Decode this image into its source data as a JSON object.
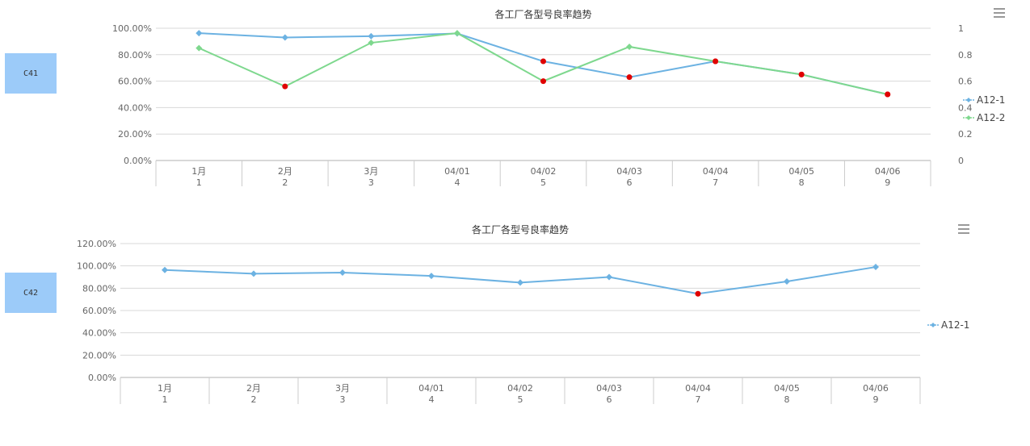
{
  "panels": [
    {
      "label": "C41"
    },
    {
      "label": "C42"
    }
  ],
  "chart_data": [
    {
      "type": "line",
      "title": "各工厂各型号良率趋势",
      "categories": [
        [
          "1月",
          "1"
        ],
        [
          "2月",
          "2"
        ],
        [
          "3月",
          "3"
        ],
        [
          "04/01",
          "4"
        ],
        [
          "04/02",
          "5"
        ],
        [
          "04/03",
          "6"
        ],
        [
          "04/04",
          "7"
        ],
        [
          "04/05",
          "8"
        ],
        [
          "04/06",
          "9"
        ]
      ],
      "left_axis": {
        "ticks": [
          "0.00%",
          "20.00%",
          "40.00%",
          "60.00%",
          "80.00%",
          "100.00%"
        ],
        "ylim": [
          0,
          1
        ]
      },
      "right_axis": {
        "ticks": [
          "0",
          "0.2",
          "0.4",
          "0.6",
          "0.8",
          "1"
        ],
        "ylim": [
          0,
          1
        ]
      },
      "grid": true,
      "legend": "right",
      "series": [
        {
          "name": "A12-1",
          "color": "#6cb2e2",
          "values": [
            0.963,
            0.93,
            0.94,
            0.96,
            0.75,
            0.63,
            0.75,
            0.65,
            0.5
          ],
          "highlight": [
            false,
            false,
            false,
            false,
            true,
            true,
            true,
            true,
            true
          ]
        },
        {
          "name": "A12-2",
          "color": "#7ed88e",
          "values": [
            0.85,
            0.56,
            0.89,
            0.963,
            0.6,
            0.86,
            0.75,
            0.65,
            0.5
          ],
          "highlight": [
            false,
            true,
            false,
            false,
            true,
            false,
            true,
            true,
            true
          ]
        }
      ],
      "highlight_color": "#e00000"
    },
    {
      "type": "line",
      "title": "各工厂各型号良率趋势",
      "categories": [
        [
          "1月",
          "1"
        ],
        [
          "2月",
          "2"
        ],
        [
          "3月",
          "3"
        ],
        [
          "04/01",
          "4"
        ],
        [
          "04/02",
          "5"
        ],
        [
          "04/03",
          "6"
        ],
        [
          "04/04",
          "7"
        ],
        [
          "04/05",
          "8"
        ],
        [
          "04/06",
          "9"
        ]
      ],
      "left_axis": {
        "ticks": [
          "0.00%",
          "20.00%",
          "40.00%",
          "60.00%",
          "80.00%",
          "100.00%",
          "120.00%"
        ],
        "ylim": [
          0,
          1.2
        ]
      },
      "grid": true,
      "legend": "right",
      "series": [
        {
          "name": "A12-1",
          "color": "#6cb2e2",
          "values": [
            0.963,
            0.93,
            0.94,
            0.91,
            0.85,
            0.9,
            0.75,
            0.86,
            0.99
          ],
          "highlight": [
            false,
            false,
            false,
            false,
            false,
            false,
            true,
            false,
            false
          ]
        }
      ],
      "highlight_color": "#e00000"
    }
  ],
  "icons": [
    "menu-icon",
    "menu-icon"
  ]
}
